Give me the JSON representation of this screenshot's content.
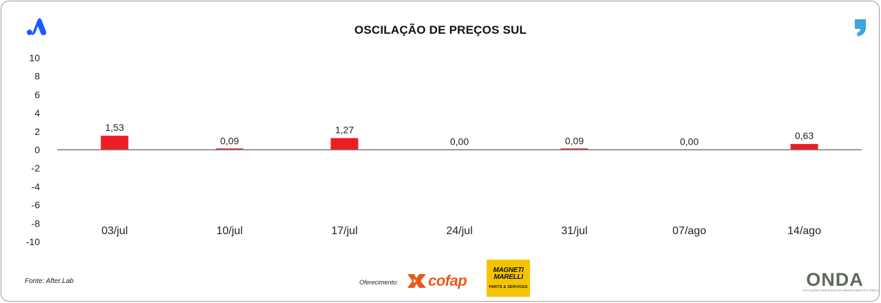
{
  "header": {
    "title": "OSCILAÇÃO DE PREÇOS SUL"
  },
  "brand": {
    "left_logo_icon": "triangle-a-logo-icon",
    "left_logo_color": "#1a5cff",
    "right_logo_icon": "comma-quote-logo-icon",
    "right_logo_color": "#3aa6e0"
  },
  "chart_data": {
    "type": "bar",
    "categories": [
      "03/jul",
      "10/jul",
      "17/jul",
      "24/jul",
      "31/jul",
      "07/ago",
      "14/ago"
    ],
    "values": [
      1.53,
      0.09,
      1.27,
      0.0,
      0.09,
      0.0,
      0.63
    ],
    "data_labels": [
      "1,53",
      "0,09",
      "1,27",
      "0,00",
      "0,09",
      "0,00",
      "0,63"
    ],
    "y_ticks": [
      "10",
      "8",
      "6",
      "4",
      "2",
      "0",
      "-2",
      "-4",
      "-6",
      "-8",
      "-10"
    ],
    "ylim": [
      -10,
      10
    ],
    "bar_color": "#ee1c25",
    "axis_color": "#777777",
    "grid": false
  },
  "footer": {
    "source": "Fonte: After.Lab",
    "sponsor_label": "Oferecimento:",
    "sponsors": {
      "cofap": "cofap",
      "cofap_color": "#e85a1c",
      "magneti_line1": "MAGNETI",
      "magneti_line2": "MARELLI",
      "magneti_sub": "PARTS & SERVICES",
      "magneti_bg": "#f5c400"
    },
    "onda": {
      "word": "ONDA",
      "tagline": "OSCILAÇÕES NOS NÍVEIS DE ABASTECIMENTO E PREÇO"
    }
  }
}
